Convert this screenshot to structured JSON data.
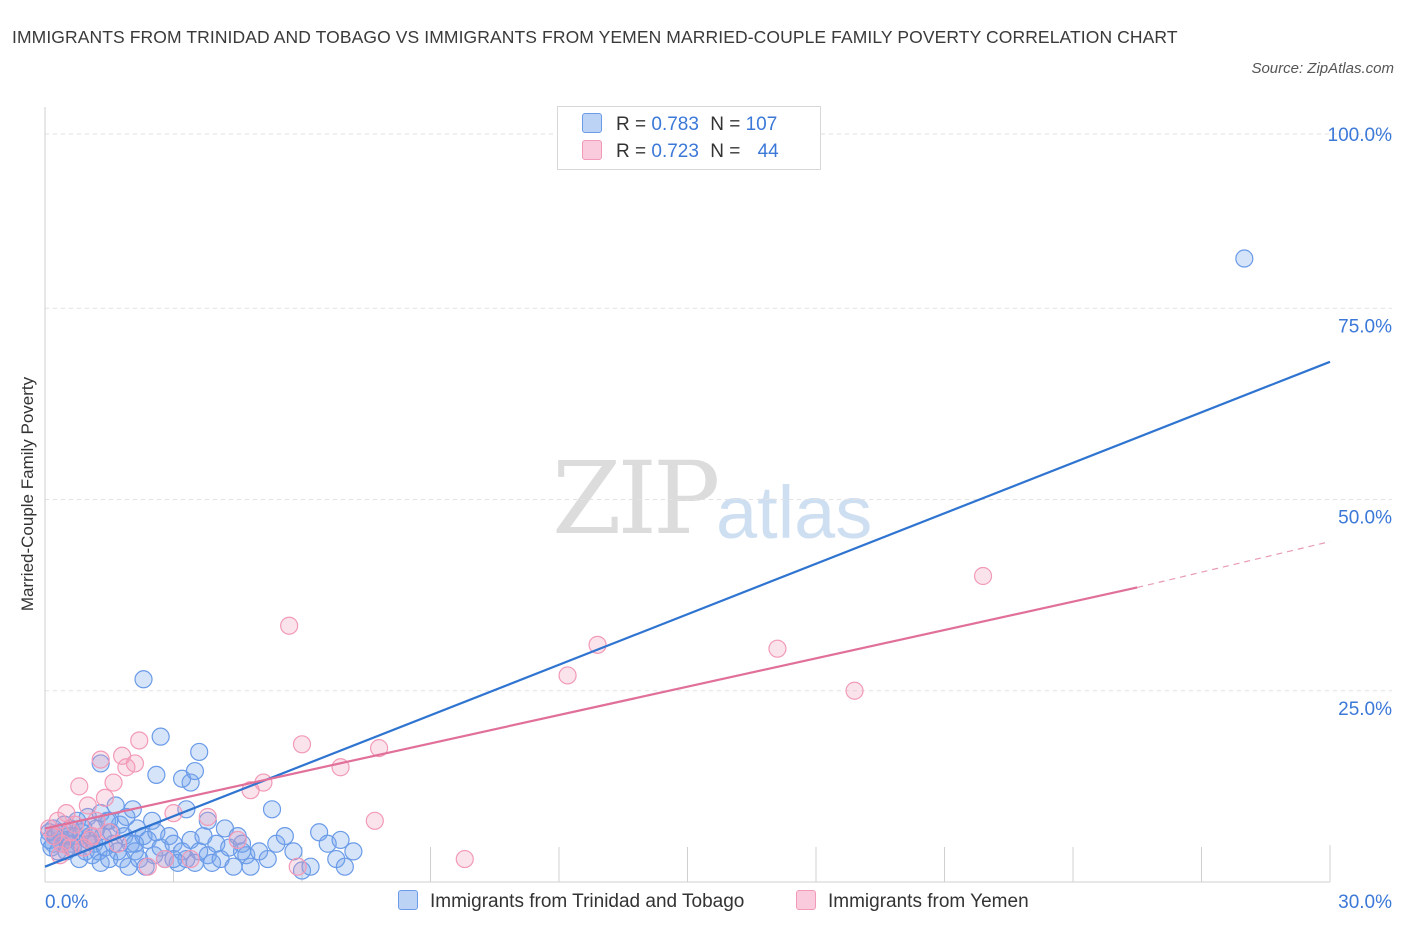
{
  "title": "IMMIGRANTS FROM TRINIDAD AND TOBAGO VS IMMIGRANTS FROM YEMEN MARRIED-COUPLE FAMILY POVERTY CORRELATION CHART",
  "source": "Source: ZipAtlas.com",
  "watermark": {
    "zip": "ZIP",
    "atlas": "atlas"
  },
  "legend_top": {
    "rows": [
      {
        "r_label": "R =",
        "r_value": "0.783",
        "n_label": "N =",
        "n_value": "107"
      },
      {
        "r_label": "R =",
        "r_value": "0.723",
        "n_label": "N =",
        "n_value": "44"
      }
    ]
  },
  "chart_data": {
    "type": "scatter",
    "title": "IMMIGRANTS FROM TRINIDAD AND TOBAGO VS IMMIGRANTS FROM YEMEN MARRIED-COUPLE FAMILY POVERTY CORRELATION CHART",
    "xlabel": "",
    "ylabel": "Married-Couple Family Poverty",
    "xlim": [
      0,
      30
    ],
    "ylim": [
      0,
      100
    ],
    "x_tick_labels": [
      "0.0%",
      "30.0%"
    ],
    "y_tick_labels": [
      "100.0%",
      "75.0%",
      "50.0%",
      "25.0%"
    ],
    "y_ticks": [
      100,
      75,
      50,
      25
    ],
    "grid": true,
    "legend_position": "bottom",
    "colors": {
      "blue": "#3b78d8",
      "pink": "#e0709a"
    },
    "series": [
      {
        "name": "Immigrants from Trinidad and Tobago",
        "color": "#6a9be8",
        "trend": {
          "x": [
            0,
            30
          ],
          "y": [
            2,
            68
          ]
        },
        "points": [
          [
            0.1,
            5.5
          ],
          [
            0.1,
            6.5
          ],
          [
            0.15,
            4.5
          ],
          [
            0.2,
            7
          ],
          [
            0.2,
            5
          ],
          [
            0.25,
            6
          ],
          [
            0.3,
            4
          ],
          [
            0.35,
            6.5
          ],
          [
            0.4,
            5
          ],
          [
            0.45,
            7.5
          ],
          [
            0.5,
            5.5
          ],
          [
            0.5,
            4
          ],
          [
            0.55,
            6
          ],
          [
            0.6,
            7
          ],
          [
            0.6,
            5
          ],
          [
            0.65,
            4.5
          ],
          [
            0.7,
            6
          ],
          [
            0.75,
            8
          ],
          [
            0.8,
            5
          ],
          [
            0.8,
            3
          ],
          [
            0.85,
            6.5
          ],
          [
            0.9,
            7
          ],
          [
            0.95,
            4
          ],
          [
            1.0,
            5.5
          ],
          [
            1.0,
            8.5
          ],
          [
            1.05,
            6
          ],
          [
            1.1,
            3.5
          ],
          [
            1.15,
            5
          ],
          [
            1.2,
            7
          ],
          [
            1.25,
            4
          ],
          [
            1.3,
            9
          ],
          [
            1.3,
            2.5
          ],
          [
            1.35,
            6
          ],
          [
            1.4,
            4.5
          ],
          [
            1.45,
            8
          ],
          [
            1.5,
            3
          ],
          [
            1.55,
            6.5
          ],
          [
            1.6,
            5
          ],
          [
            1.65,
            10
          ],
          [
            1.7,
            4
          ],
          [
            1.75,
            7.5
          ],
          [
            1.8,
            3
          ],
          [
            1.85,
            6
          ],
          [
            1.9,
            8.5
          ],
          [
            1.95,
            2
          ],
          [
            2.0,
            5
          ],
          [
            2.05,
            9.5
          ],
          [
            2.1,
            4
          ],
          [
            2.15,
            7
          ],
          [
            2.2,
            3
          ],
          [
            2.3,
            6
          ],
          [
            2.35,
            2
          ],
          [
            2.4,
            5.5
          ],
          [
            2.5,
            8
          ],
          [
            2.55,
            3.5
          ],
          [
            2.6,
            6.5
          ],
          [
            2.7,
            4.5
          ],
          [
            2.8,
            3
          ],
          [
            2.9,
            6
          ],
          [
            3.0,
            5
          ],
          [
            3.1,
            2.5
          ],
          [
            3.2,
            4
          ],
          [
            3.3,
            3
          ],
          [
            3.4,
            5.5
          ],
          [
            3.5,
            2.5
          ],
          [
            3.6,
            4
          ],
          [
            3.7,
            6
          ],
          [
            3.8,
            3.5
          ],
          [
            3.9,
            2.5
          ],
          [
            4.0,
            5
          ],
          [
            4.1,
            3
          ],
          [
            4.2,
            7
          ],
          [
            4.3,
            4.5
          ],
          [
            4.4,
            2
          ],
          [
            4.5,
            6
          ],
          [
            4.6,
            4
          ],
          [
            4.7,
            3.5
          ],
          [
            4.8,
            2
          ],
          [
            5.0,
            4
          ],
          [
            5.2,
            3
          ],
          [
            5.4,
            5
          ],
          [
            5.6,
            6
          ],
          [
            5.8,
            4
          ],
          [
            6.0,
            1.5
          ],
          [
            6.2,
            2
          ],
          [
            6.4,
            6.5
          ],
          [
            6.6,
            5
          ],
          [
            6.8,
            3
          ],
          [
            7.0,
            2
          ],
          [
            7.2,
            4
          ],
          [
            2.3,
            26.5
          ],
          [
            2.7,
            19
          ],
          [
            3.6,
            17
          ],
          [
            2.6,
            14
          ],
          [
            3.4,
            13
          ],
          [
            3.2,
            13.5
          ],
          [
            3.5,
            14.5
          ],
          [
            1.3,
            15.5
          ],
          [
            3.3,
            9.5
          ],
          [
            3.8,
            8
          ],
          [
            5.3,
            9.5
          ],
          [
            6.9,
            5.5
          ],
          [
            2.1,
            5
          ],
          [
            1.5,
            8
          ],
          [
            3.0,
            3
          ],
          [
            4.6,
            5
          ],
          [
            28.0,
            81.5
          ]
        ]
      },
      {
        "name": "Immigrants from Yemen",
        "color": "#f29ab8",
        "trend": {
          "x": [
            0,
            25.5
          ],
          "y": [
            7,
            38.5
          ],
          "dashed_x": [
            25.5,
            30
          ],
          "dashed_y": [
            38.5,
            44.5
          ]
        },
        "points": [
          [
            0.1,
            7
          ],
          [
            0.2,
            6
          ],
          [
            0.3,
            8
          ],
          [
            0.4,
            5
          ],
          [
            0.5,
            9
          ],
          [
            0.6,
            6.5
          ],
          [
            0.7,
            7.5
          ],
          [
            0.8,
            12.5
          ],
          [
            0.9,
            4.5
          ],
          [
            1.0,
            10
          ],
          [
            1.05,
            5.5
          ],
          [
            1.1,
            6
          ],
          [
            1.2,
            8
          ],
          [
            1.3,
            16
          ],
          [
            1.4,
            11
          ],
          [
            1.5,
            6.5
          ],
          [
            1.6,
            13
          ],
          [
            1.7,
            5
          ],
          [
            1.8,
            16.5
          ],
          [
            1.9,
            15
          ],
          [
            2.1,
            15.5
          ],
          [
            2.2,
            18.5
          ],
          [
            2.4,
            2
          ],
          [
            2.8,
            3
          ],
          [
            3.0,
            9
          ],
          [
            3.4,
            3
          ],
          [
            3.8,
            8.5
          ],
          [
            4.5,
            5.5
          ],
          [
            4.8,
            12
          ],
          [
            5.1,
            13
          ],
          [
            5.7,
            33.5
          ],
          [
            5.9,
            2
          ],
          [
            6.0,
            18
          ],
          [
            6.9,
            15
          ],
          [
            7.8,
            17.5
          ],
          [
            7.7,
            8
          ],
          [
            9.8,
            3
          ],
          [
            12.2,
            27
          ],
          [
            12.9,
            31
          ],
          [
            17.1,
            30.5
          ],
          [
            18.9,
            25
          ],
          [
            21.9,
            40
          ],
          [
            0.35,
            3.5
          ],
          [
            0.6,
            4.5
          ]
        ]
      }
    ]
  },
  "bottom_legend": [
    {
      "label": "Immigrants from Trinidad and Tobago"
    },
    {
      "label": "Immigrants from Yemen"
    }
  ]
}
